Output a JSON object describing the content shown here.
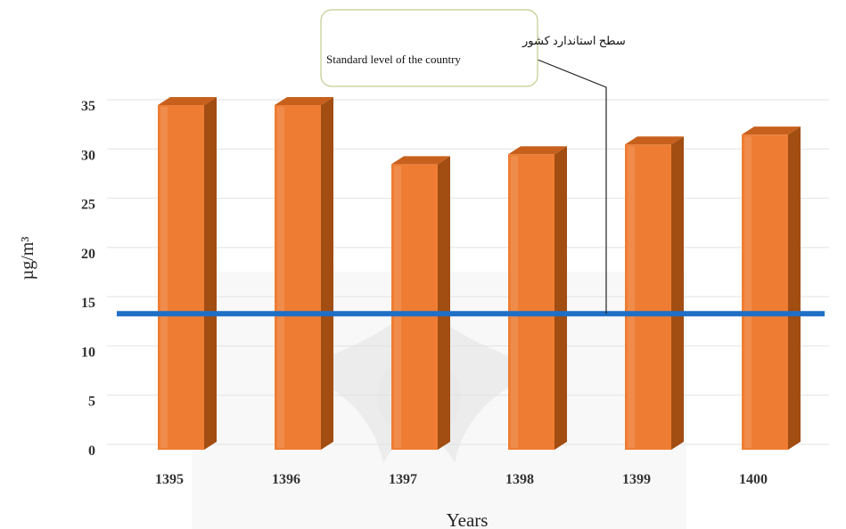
{
  "chart_data": {
    "type": "bar",
    "categories": [
      "1395",
      "1396",
      "1397",
      "1398",
      "1399",
      "1400"
    ],
    "series": [
      {
        "values": [
          35,
          35,
          29,
          30,
          31,
          32
        ]
      }
    ],
    "reference_line": {
      "value": 13,
      "label_fa": "سطح استاندارد کشور",
      "label_en": "Standard level of the country"
    },
    "xlabel": "Years",
    "ylabel": "µg/m³",
    "ylim": [
      0,
      35
    ],
    "yticks": [
      "0",
      "5",
      "10",
      "15",
      "20",
      "25",
      "30",
      "35"
    ],
    "grid": true,
    "style": "3d",
    "colors": {
      "bar_front": "#ee7d33",
      "bar_side": "#a24d12",
      "bar_top": "#c8601d",
      "reference_line": "#1f6fc6",
      "annotation_border": "#c3cc8c"
    }
  }
}
